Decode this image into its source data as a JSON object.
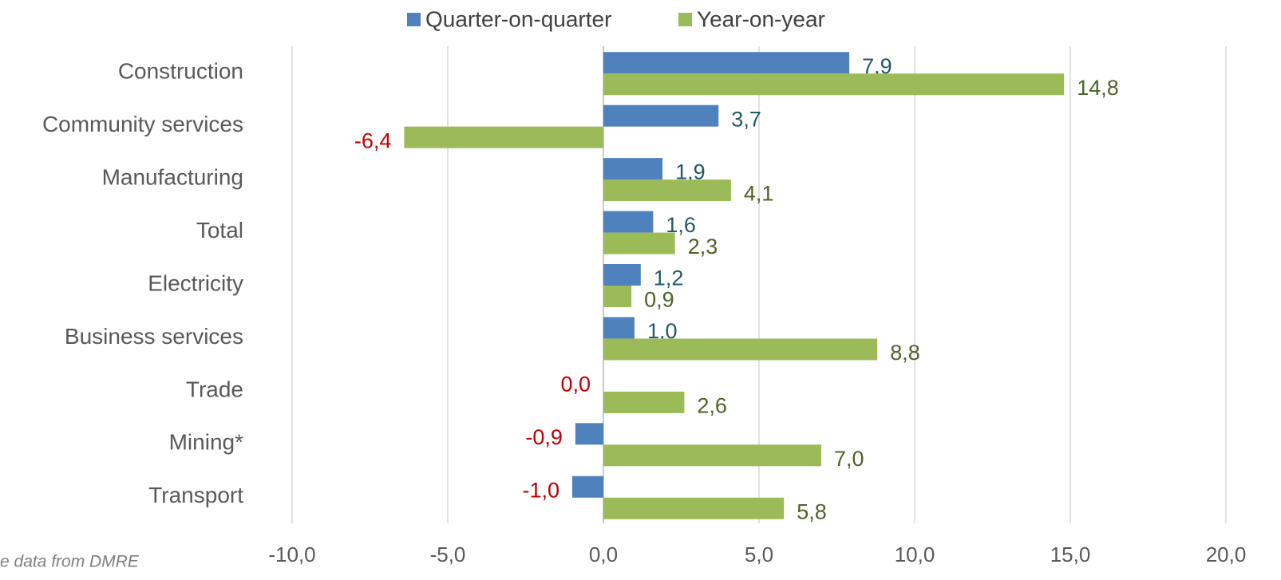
{
  "chart_data": {
    "type": "bar",
    "orientation": "horizontal",
    "categories": [
      "Construction",
      "Community services",
      "Manufacturing",
      "Total",
      "Electricity",
      "Business services",
      "Trade",
      "Mining*",
      "Transport"
    ],
    "series": [
      {
        "name": "Quarter-on-quarter",
        "color": "#4f81bd",
        "label_color": "#215967",
        "values": [
          7.9,
          3.7,
          1.9,
          1.6,
          1.2,
          1.0,
          0.0,
          -0.9,
          -1.0
        ],
        "value_labels": [
          "7,9",
          "3,7",
          "1,9",
          "1,6",
          "1,2",
          "1,0",
          "0,0",
          "-0,9",
          "-1,0"
        ]
      },
      {
        "name": "Year-on-year",
        "color": "#9bbb59",
        "label_color": "#4f6228",
        "values": [
          14.8,
          -6.4,
          4.1,
          2.3,
          0.9,
          8.8,
          2.6,
          7.0,
          5.8
        ],
        "value_labels": [
          "14,8",
          "-6,4",
          "4,1",
          "2,3",
          "0,9",
          "8,8",
          "2,6",
          "7,0",
          "5,8"
        ]
      }
    ],
    "negative_label_color": "#c00000",
    "xlim": [
      -10,
      20
    ],
    "xticks": [
      {
        "value": -10,
        "label": "-10,0"
      },
      {
        "value": -5,
        "label": "-5,0"
      },
      {
        "value": 0,
        "label": "0,0"
      },
      {
        "value": 5,
        "label": "5,0"
      },
      {
        "value": 10,
        "label": "10,0"
      },
      {
        "value": 15,
        "label": "15,0"
      },
      {
        "value": 20,
        "label": "20,0"
      }
    ],
    "grid": true,
    "legend": "top",
    "note": "e data from DMRE"
  }
}
